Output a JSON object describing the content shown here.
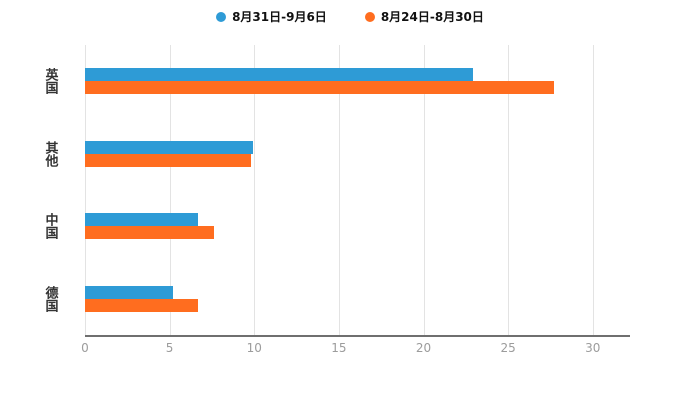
{
  "chart_data": {
    "type": "bar",
    "orientation": "horizontal",
    "title": "",
    "xlabel": "",
    "ylabel": "",
    "categories": [
      "英国",
      "其他",
      "中国",
      "德国"
    ],
    "series": [
      {
        "name": "8月31日-9月6日",
        "color": "#2E9BD6",
        "values": [
          22.9,
          9.9,
          6.7,
          5.2
        ]
      },
      {
        "name": "8月24日-8月30日",
        "color": "#FF6D1F",
        "values": [
          27.7,
          9.8,
          7.6,
          6.7
        ]
      }
    ],
    "xlim": [
      0,
      32.2
    ],
    "xticks": [
      0,
      5,
      10,
      15,
      20,
      25,
      30
    ],
    "grid": true,
    "legend_position": "top",
    "background_color": "#ffffff",
    "tick_label_color": "#9c9c9c",
    "category_label_color": "#333333"
  }
}
